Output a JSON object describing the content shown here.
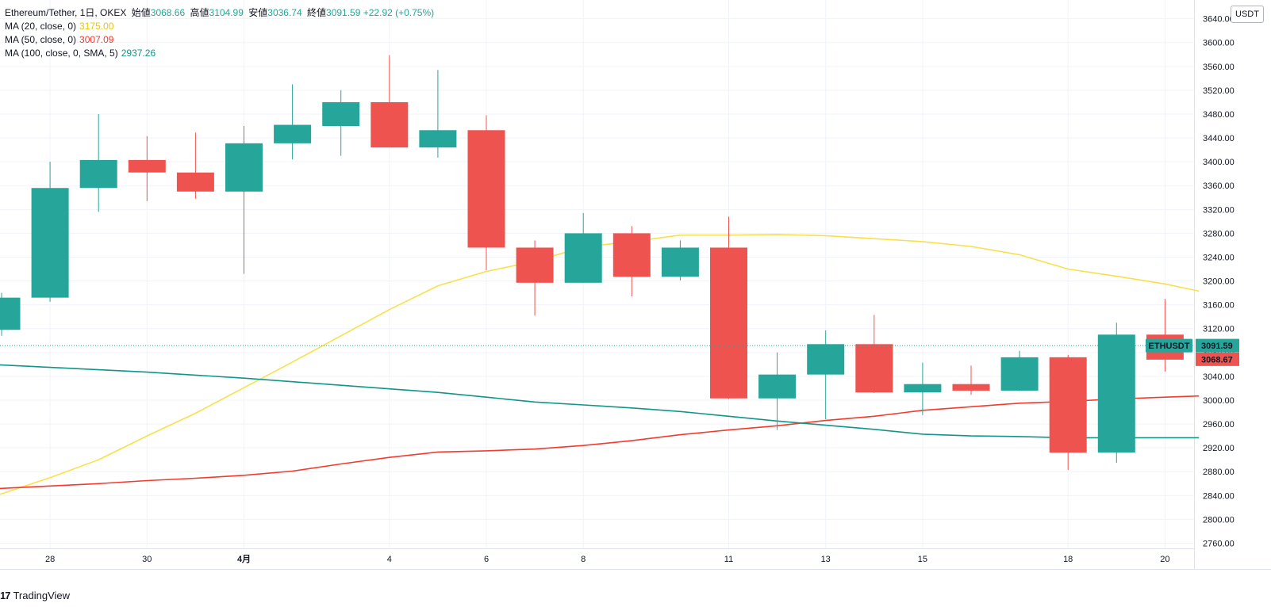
{
  "legend": {
    "symbol_line": "Ethereum/Tether, 1日, OKEX",
    "open_label": "始値",
    "open_value": "3068.66",
    "high_label": "高値",
    "high_value": "3104.99",
    "low_label": "安値",
    "low_value": "3036.74",
    "close_label": "終値",
    "close_value": "3091.59",
    "change_value": "+22.92 (+0.75%)",
    "ma20_label": "MA (20, close, 0)",
    "ma20_value": "3175.00",
    "ma20_color": "#f7e14a",
    "ma50_label": "MA (50, close, 0)",
    "ma50_value": "3007.09",
    "ma50_color": "#f23b2e",
    "ma100_label": "MA (100, close, 0, SMA, 5)",
    "ma100_value": "2937.26",
    "ma100_color": "#109688"
  },
  "price_axis": {
    "unit": "USDT",
    "ticks": [
      "2760.00",
      "2800.00",
      "2840.00",
      "2880.00",
      "2920.00",
      "2960.00",
      "3000.00",
      "3040.00",
      "3080.00",
      "3120.00",
      "3160.00",
      "3200.00",
      "3240.00",
      "3280.00",
      "3320.00",
      "3360.00",
      "3400.00",
      "3440.00",
      "3480.00",
      "3520.00",
      "3560.00",
      "3600.00",
      "3640.00"
    ],
    "last_price_label": "3091.59",
    "symbol_tag": "ETHUSDT",
    "open_marker_label": "3068.67"
  },
  "time_axis": {
    "ticks": [
      {
        "label": "28",
        "day": 1
      },
      {
        "label": "30",
        "day": 3
      },
      {
        "label": "4月",
        "day": 5,
        "bold": true
      },
      {
        "label": "4",
        "day": 8
      },
      {
        "label": "6",
        "day": 10
      },
      {
        "label": "8",
        "day": 12
      },
      {
        "label": "11",
        "day": 15
      },
      {
        "label": "13",
        "day": 17
      },
      {
        "label": "15",
        "day": 19
      },
      {
        "label": "18",
        "day": 22
      },
      {
        "label": "20",
        "day": 24
      }
    ]
  },
  "brand": {
    "logo": "17",
    "name": "TradingView"
  },
  "chart_data": {
    "type": "candlestick",
    "title": "Ethereum/Tether, 1日, OKEX",
    "ylabel": "USDT",
    "ylim": [
      2750,
      3650
    ],
    "up_color": "#26a69a",
    "down_color": "#ef5350",
    "grid": true,
    "candles": [
      {
        "day": 0,
        "open": 3118,
        "high": 3180,
        "low": 3108,
        "close": 3172
      },
      {
        "day": 1,
        "open": 3172,
        "high": 3400,
        "low": 3165,
        "close": 3356
      },
      {
        "day": 2,
        "open": 3356,
        "high": 3480,
        "low": 3316,
        "close": 3403
      },
      {
        "day": 3,
        "open": 3403,
        "high": 3443,
        "low": 3334,
        "close": 3382
      },
      {
        "day": 4,
        "open": 3382,
        "high": 3449,
        "low": 3338,
        "close": 3350
      },
      {
        "day": 5,
        "open": 3350,
        "high": 3460,
        "low": 3212,
        "close": 3431
      },
      {
        "day": 6,
        "open": 3431,
        "high": 3530,
        "low": 3404,
        "close": 3462
      },
      {
        "day": 7,
        "open": 3460,
        "high": 3520,
        "low": 3410,
        "close": 3500
      },
      {
        "day": 8,
        "open": 3500,
        "high": 3579,
        "low": 3424,
        "close": 3424
      },
      {
        "day": 9,
        "open": 3424,
        "high": 3554,
        "low": 3407,
        "close": 3453
      },
      {
        "day": 10,
        "open": 3453,
        "high": 3478,
        "low": 3218,
        "close": 3256
      },
      {
        "day": 11,
        "open": 3256,
        "high": 3268,
        "low": 3142,
        "close": 3197
      },
      {
        "day": 12,
        "open": 3197,
        "high": 3314,
        "low": 3197,
        "close": 3280
      },
      {
        "day": 13,
        "open": 3280,
        "high": 3292,
        "low": 3174,
        "close": 3207
      },
      {
        "day": 14,
        "open": 3207,
        "high": 3268,
        "low": 3201,
        "close": 3256
      },
      {
        "day": 15,
        "open": 3256,
        "high": 3308,
        "low": 3002,
        "close": 3003
      },
      {
        "day": 16,
        "open": 3003,
        "high": 3080,
        "low": 2950,
        "close": 3043
      },
      {
        "day": 17,
        "open": 3043,
        "high": 3117,
        "low": 2968,
        "close": 3094
      },
      {
        "day": 18,
        "open": 3094,
        "high": 3143,
        "low": 3012,
        "close": 3013
      },
      {
        "day": 19,
        "open": 3013,
        "high": 3063,
        "low": 2975,
        "close": 3027
      },
      {
        "day": 20,
        "open": 3027,
        "high": 3058,
        "low": 3009,
        "close": 3016
      },
      {
        "day": 21,
        "open": 3016,
        "high": 3083,
        "low": 3015,
        "close": 3072
      },
      {
        "day": 22,
        "open": 3072,
        "high": 3076,
        "low": 2883,
        "close": 2912
      },
      {
        "day": 23,
        "open": 2912,
        "high": 3130,
        "low": 2895,
        "close": 3110
      },
      {
        "day": 24,
        "open": 3110,
        "high": 3170,
        "low": 3048,
        "close": 3068
      }
    ],
    "series": [
      {
        "name": "MA (20, close, 0)",
        "color": "#f7e14a",
        "points": [
          [
            -1,
            2820
          ],
          [
            0,
            2843
          ],
          [
            1,
            2870
          ],
          [
            2,
            2900
          ],
          [
            3,
            2940
          ],
          [
            4,
            2978
          ],
          [
            5,
            3021
          ],
          [
            6,
            3064
          ],
          [
            7,
            3108
          ],
          [
            8,
            3152
          ],
          [
            9,
            3192
          ],
          [
            10,
            3216
          ],
          [
            11,
            3233
          ],
          [
            12,
            3257
          ],
          [
            13,
            3266
          ],
          [
            14,
            3277
          ],
          [
            15,
            3277
          ],
          [
            16,
            3278
          ],
          [
            17,
            3276
          ],
          [
            18,
            3271
          ],
          [
            19,
            3266
          ],
          [
            20,
            3258
          ],
          [
            21,
            3244
          ],
          [
            22,
            3220
          ],
          [
            23,
            3208
          ],
          [
            24,
            3195
          ],
          [
            24.7,
            3183
          ]
        ]
      },
      {
        "name": "MA (50, close, 0)",
        "color": "#f23b2e",
        "points": [
          [
            -1,
            2847
          ],
          [
            0,
            2852
          ],
          [
            1,
            2856
          ],
          [
            2,
            2860
          ],
          [
            3,
            2865
          ],
          [
            4,
            2869
          ],
          [
            5,
            2874
          ],
          [
            6,
            2881
          ],
          [
            7,
            2893
          ],
          [
            8,
            2904
          ],
          [
            9,
            2913
          ],
          [
            10,
            2915
          ],
          [
            11,
            2918
          ],
          [
            12,
            2924
          ],
          [
            13,
            2932
          ],
          [
            14,
            2942
          ],
          [
            15,
            2950
          ],
          [
            16,
            2957
          ],
          [
            17,
            2966
          ],
          [
            18,
            2973
          ],
          [
            19,
            2983
          ],
          [
            20,
            2989
          ],
          [
            21,
            2995
          ],
          [
            22,
            2998
          ],
          [
            23,
            3002
          ],
          [
            24,
            3005
          ],
          [
            24.7,
            3007
          ]
        ]
      },
      {
        "name": "MA (100, close, 0, SMA, 5)",
        "color": "#109688",
        "points": [
          [
            -1,
            3062
          ],
          [
            0,
            3059
          ],
          [
            1,
            3055
          ],
          [
            2,
            3051
          ],
          [
            3,
            3047
          ],
          [
            4,
            3042
          ],
          [
            5,
            3037
          ],
          [
            6,
            3031
          ],
          [
            7,
            3025
          ],
          [
            8,
            3019
          ],
          [
            9,
            3013
          ],
          [
            10,
            3005
          ],
          [
            11,
            2997
          ],
          [
            12,
            2992
          ],
          [
            13,
            2987
          ],
          [
            14,
            2981
          ],
          [
            15,
            2973
          ],
          [
            16,
            2965
          ],
          [
            17,
            2958
          ],
          [
            18,
            2951
          ],
          [
            19,
            2943
          ],
          [
            20,
            2940
          ],
          [
            21,
            2939
          ],
          [
            22,
            2937
          ],
          [
            23,
            2937
          ],
          [
            24,
            2937
          ],
          [
            24.7,
            2937
          ]
        ]
      }
    ]
  }
}
